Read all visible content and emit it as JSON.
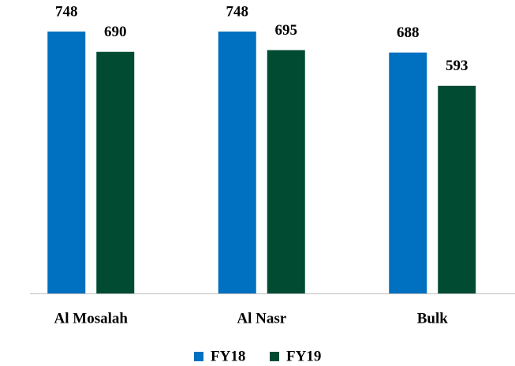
{
  "chart_data": {
    "type": "bar",
    "categories": [
      "Al Mosalah",
      "Al Nasr",
      "Bulk"
    ],
    "series": [
      {
        "name": "FY18",
        "color": "#0070c0",
        "values": [
          748,
          748,
          688
        ]
      },
      {
        "name": "FY19",
        "color": "#004b32",
        "values": [
          690,
          695,
          593
        ]
      }
    ],
    "legend": "bottom"
  }
}
